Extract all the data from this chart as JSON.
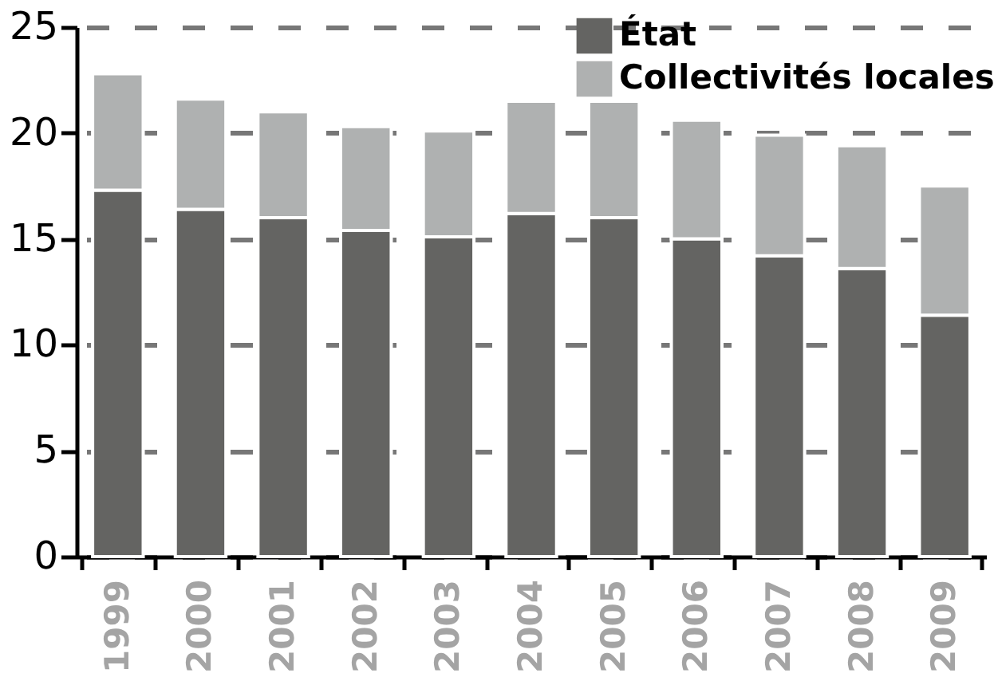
{
  "chart_data": {
    "type": "bar",
    "stacked": true,
    "categories": [
      "1999",
      "2000",
      "2001",
      "2002",
      "2003",
      "2004",
      "2005",
      "2006",
      "2007",
      "2008",
      "2009"
    ],
    "series": [
      {
        "name": "État",
        "color": "#646462",
        "values": [
          17.3,
          16.4,
          16.0,
          15.4,
          15.1,
          16.2,
          16.0,
          15.0,
          14.2,
          13.6,
          11.4
        ]
      },
      {
        "name": "Collectivités locales",
        "color": "#afb1b1",
        "values": [
          5.5,
          5.2,
          5.0,
          4.9,
          5.0,
          5.3,
          5.5,
          5.6,
          5.7,
          5.8,
          6.1
        ]
      }
    ],
    "ylim": [
      0,
      25
    ],
    "yticks": [
      0,
      5,
      10,
      15,
      20,
      25
    ],
    "grid": "y",
    "legend": "top right"
  }
}
